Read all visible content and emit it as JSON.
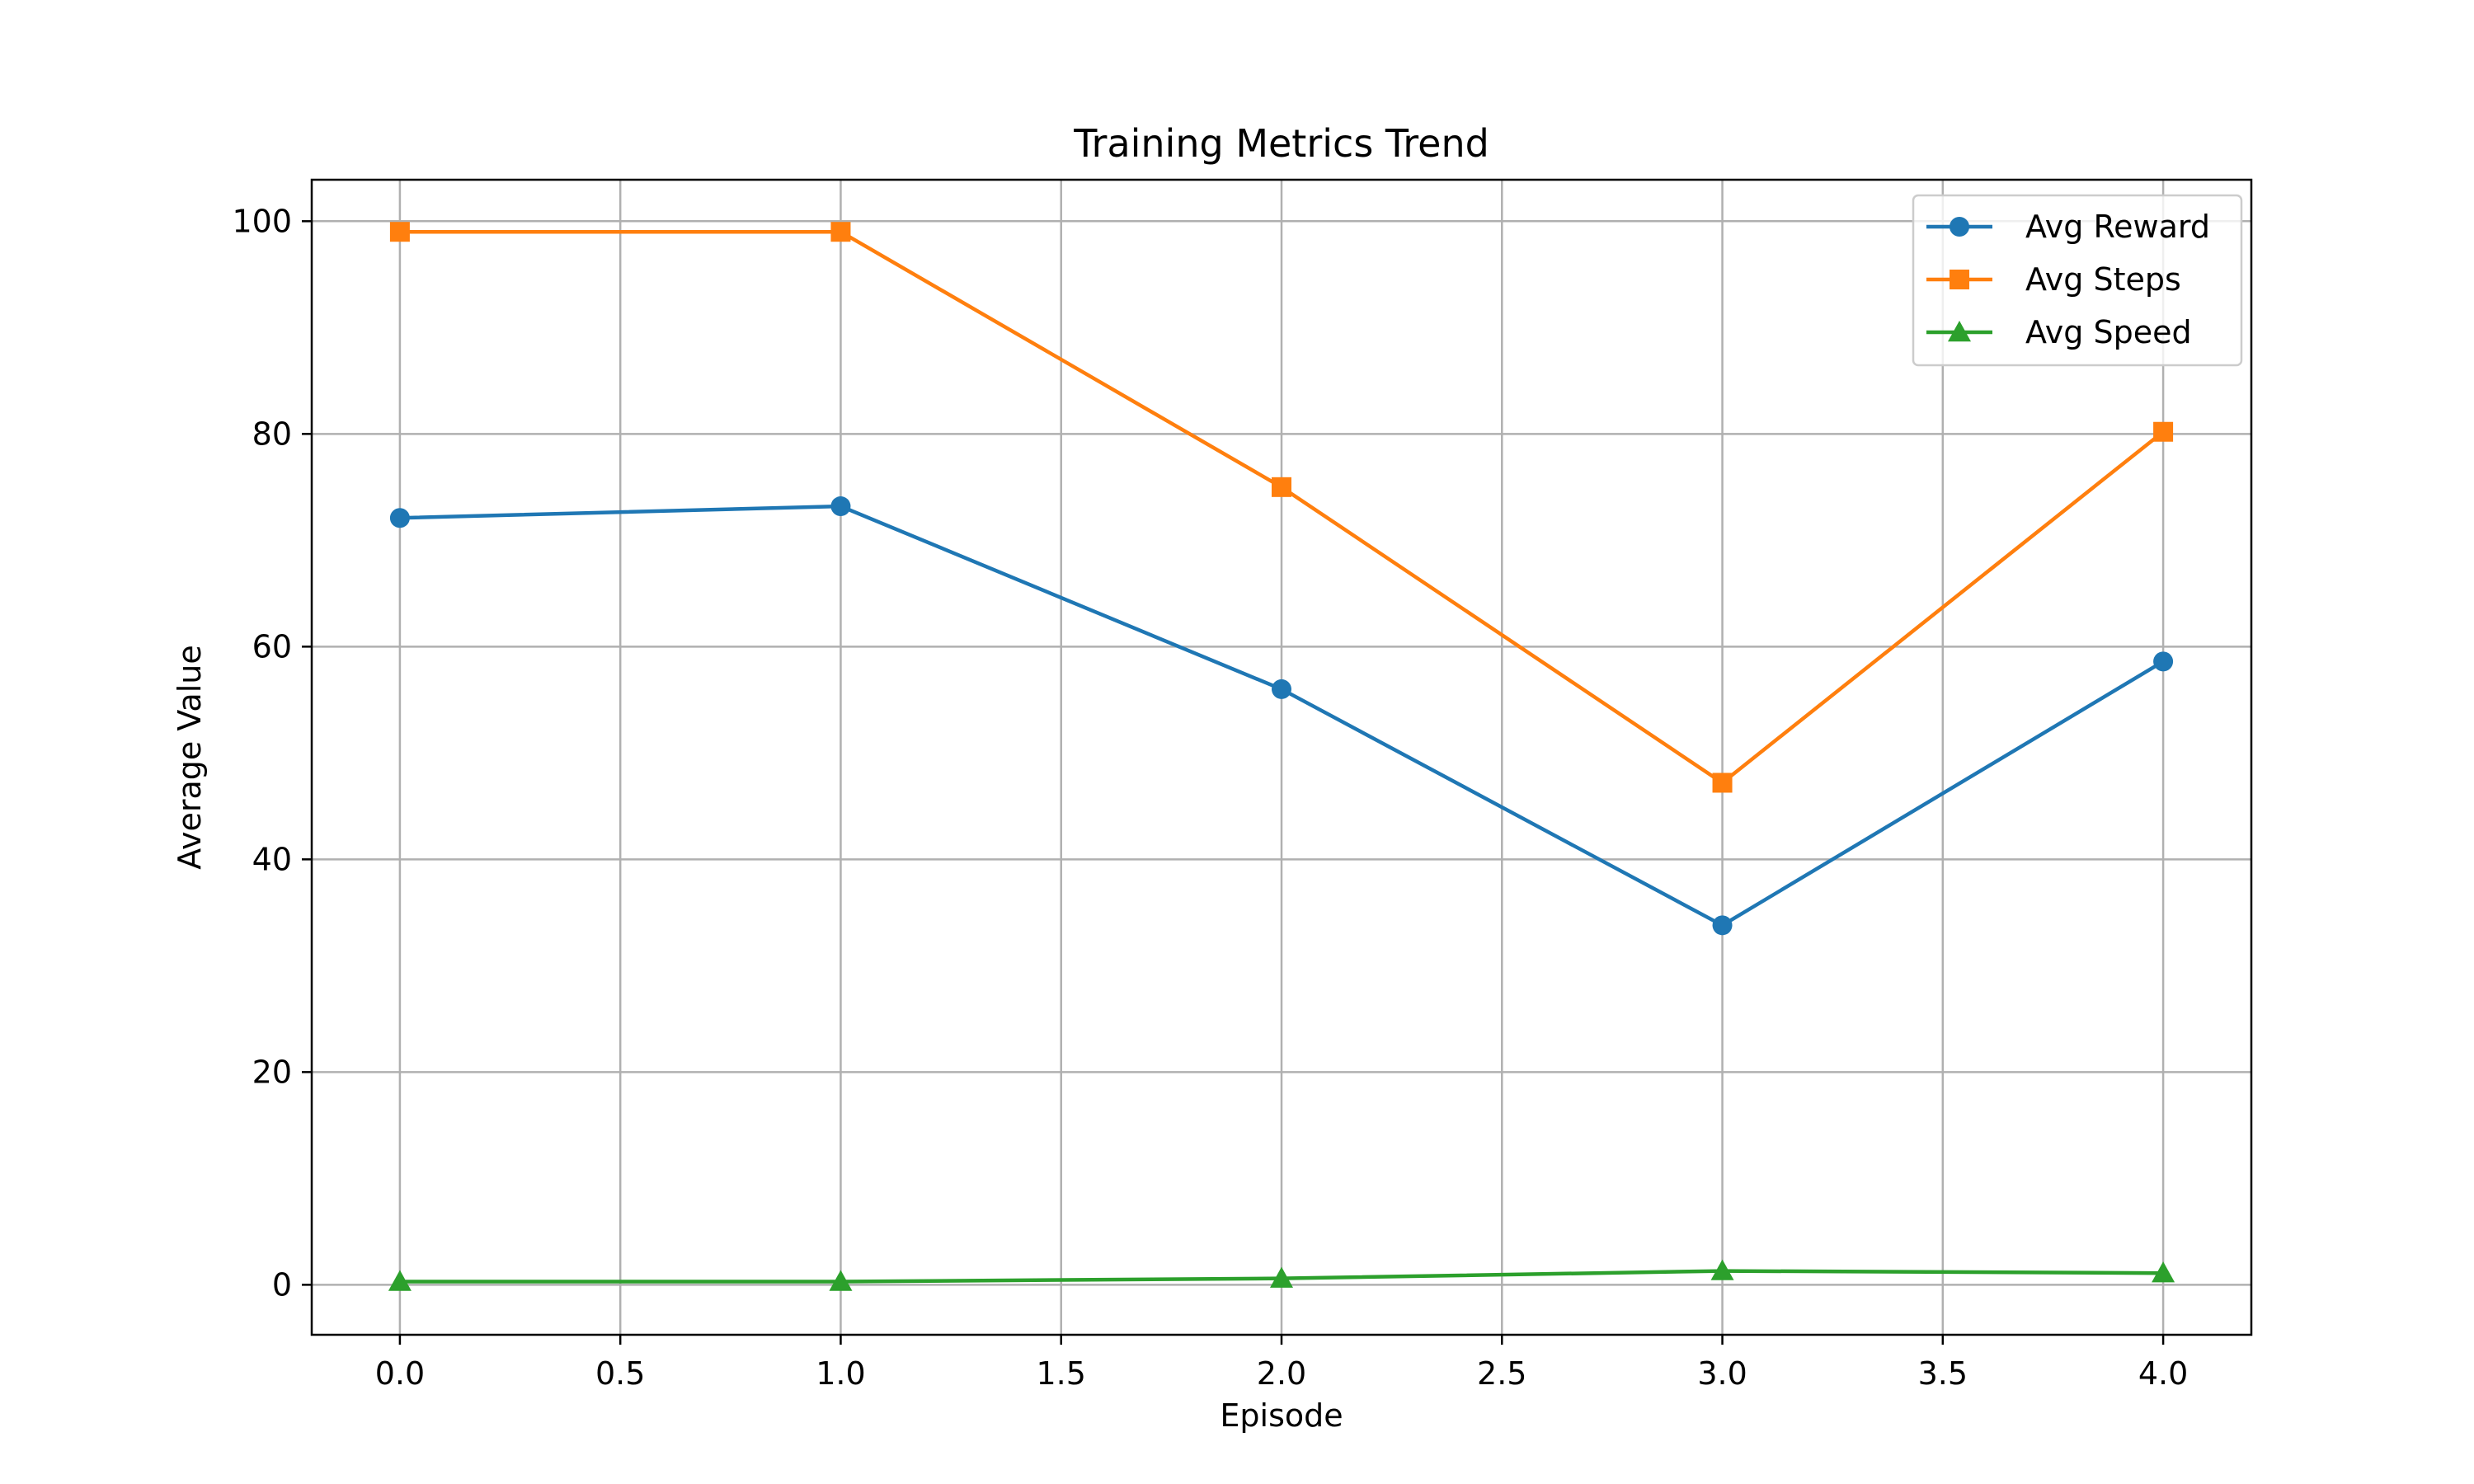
{
  "chart_data": {
    "type": "line",
    "title": "Training Metrics Trend",
    "xlabel": "Episode",
    "ylabel": "Average Value",
    "x": [
      0,
      1,
      2,
      3,
      4
    ],
    "xlim": [
      -0.2,
      4.2
    ],
    "ylim": [
      -4.7,
      103.9
    ],
    "xticks": [
      0.0,
      0.5,
      1.0,
      1.5,
      2.0,
      2.5,
      3.0,
      3.5,
      4.0
    ],
    "xtick_labels": [
      "0.0",
      "0.5",
      "1.0",
      "1.5",
      "2.0",
      "2.5",
      "3.0",
      "3.5",
      "4.0"
    ],
    "yticks": [
      0,
      20,
      40,
      60,
      80,
      100
    ],
    "ytick_labels": [
      "0",
      "20",
      "40",
      "60",
      "80",
      "100"
    ],
    "grid": true,
    "legend_position": "top-right",
    "series": [
      {
        "name": "Avg Reward",
        "color": "#1f77b4",
        "marker": "circle",
        "values": [
          72.1,
          73.2,
          56.0,
          33.8,
          58.6
        ]
      },
      {
        "name": "Avg Steps",
        "color": "#ff7f0e",
        "marker": "square",
        "values": [
          99.0,
          99.0,
          75.0,
          47.2,
          80.2
        ]
      },
      {
        "name": "Avg Speed",
        "color": "#2ca02c",
        "marker": "triangle",
        "values": [
          0.3,
          0.3,
          0.6,
          1.3,
          1.1
        ]
      }
    ]
  }
}
